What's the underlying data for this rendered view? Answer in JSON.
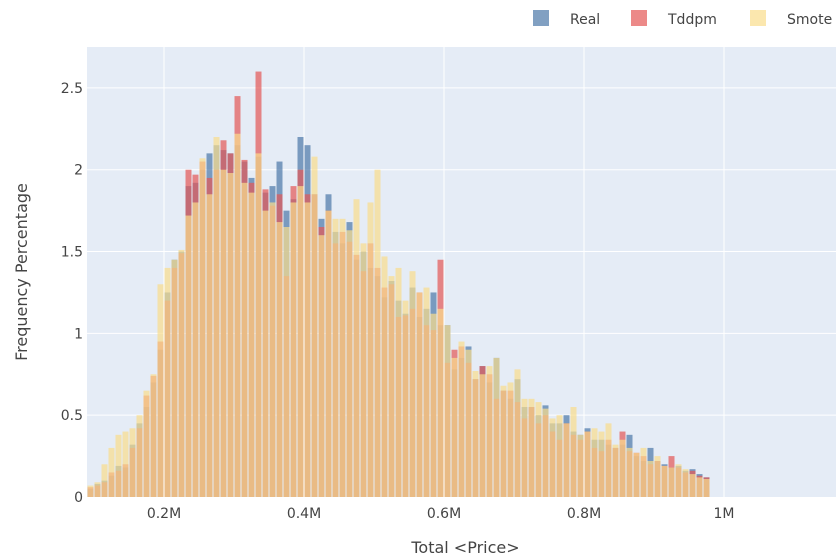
{
  "chart_data": {
    "type": "bar",
    "barmode": "overlay",
    "title": "",
    "xlabel": "Total <Price>",
    "ylabel": "Frequency Percentage",
    "xlim": [
      90000,
      1160000
    ],
    "ylim": [
      0,
      2.75
    ],
    "bin_start": 80000,
    "bin_width": 10000,
    "grid": true,
    "legend_position": "top-right",
    "x_ticks": [
      {
        "value": 200000,
        "label": "0.2M"
      },
      {
        "value": 400000,
        "label": "0.4M"
      },
      {
        "value": 600000,
        "label": "0.6M"
      },
      {
        "value": 800000,
        "label": "0.8M"
      },
      {
        "value": 1000000,
        "label": "1M"
      }
    ],
    "y_ticks": [
      {
        "value": 0,
        "label": "0"
      },
      {
        "value": 0.5,
        "label": "0.5"
      },
      {
        "value": 1,
        "label": "1"
      },
      {
        "value": 1.5,
        "label": "1.5"
      },
      {
        "value": 2,
        "label": "2"
      },
      {
        "value": 2.5,
        "label": "2.5"
      }
    ],
    "colors": {
      "plot_bg": "#e5ecf6",
      "grid": "#ffffff"
    },
    "series": [
      {
        "name": "Real",
        "color": "#4c78a8",
        "values": [
          0.02,
          0.05,
          0.08,
          0.1,
          0.13,
          0.19,
          0.18,
          0.32,
          0.45,
          0.55,
          0.7,
          0.9,
          1.25,
          1.45,
          1.5,
          1.9,
          1.92,
          2.0,
          2.1,
          2.15,
          2.12,
          2.1,
          2.15,
          2.05,
          1.95,
          2.08,
          1.86,
          1.9,
          2.05,
          1.75,
          1.82,
          2.2,
          2.15,
          1.85,
          1.7,
          1.85,
          1.62,
          1.55,
          1.68,
          1.45,
          1.5,
          1.4,
          1.35,
          1.22,
          1.32,
          1.2,
          1.12,
          1.28,
          1.1,
          1.15,
          1.25,
          1.05,
          1.05,
          0.78,
          0.85,
          0.92,
          0.72,
          0.8,
          0.7,
          0.85,
          0.65,
          0.6,
          0.72,
          0.55,
          0.55,
          0.5,
          0.56,
          0.45,
          0.45,
          0.5,
          0.4,
          0.38,
          0.42,
          0.35,
          0.35,
          0.32,
          0.3,
          0.32,
          0.38,
          0.25,
          0.22,
          0.3,
          0.22,
          0.2,
          0.18,
          0.19,
          0.16,
          0.17,
          0.14,
          0.12
        ]
      },
      {
        "name": "Tddpm",
        "color": "#e45756",
        "values": [
          0.03,
          0.06,
          0.07,
          0.09,
          0.15,
          0.16,
          0.2,
          0.3,
          0.42,
          0.62,
          0.74,
          0.95,
          1.2,
          1.4,
          1.49,
          2.0,
          1.97,
          2.05,
          1.95,
          2.0,
          2.18,
          2.1,
          2.45,
          2.06,
          1.92,
          2.6,
          1.88,
          1.78,
          1.85,
          1.35,
          1.9,
          2.0,
          1.85,
          1.85,
          1.65,
          1.75,
          1.55,
          1.62,
          1.56,
          1.48,
          1.38,
          1.55,
          1.4,
          1.28,
          1.3,
          1.1,
          1.11,
          1.15,
          1.25,
          1.05,
          1.02,
          1.45,
          0.82,
          0.9,
          0.92,
          0.82,
          0.72,
          0.8,
          0.75,
          0.6,
          0.65,
          0.65,
          0.58,
          0.48,
          0.55,
          0.45,
          0.5,
          0.4,
          0.35,
          0.45,
          0.38,
          0.35,
          0.4,
          0.3,
          0.28,
          0.35,
          0.3,
          0.4,
          0.28,
          0.27,
          0.25,
          0.2,
          0.22,
          0.19,
          0.25,
          0.18,
          0.15,
          0.16,
          0.13,
          0.12
        ]
      },
      {
        "name": "Smote",
        "color": "#fadd8c",
        "values": [
          0.04,
          0.07,
          0.09,
          0.2,
          0.3,
          0.38,
          0.4,
          0.42,
          0.5,
          0.65,
          0.75,
          1.3,
          1.4,
          1.45,
          1.51,
          1.72,
          1.8,
          2.07,
          1.85,
          2.2,
          2.0,
          1.98,
          2.22,
          1.92,
          1.86,
          2.1,
          1.75,
          1.8,
          1.68,
          1.65,
          1.8,
          1.9,
          1.8,
          2.08,
          1.6,
          1.75,
          1.7,
          1.7,
          1.63,
          1.82,
          1.55,
          1.8,
          2.0,
          1.47,
          1.35,
          1.4,
          1.2,
          1.38,
          1.25,
          1.28,
          1.12,
          1.15,
          1.05,
          0.85,
          0.95,
          0.9,
          0.77,
          0.75,
          0.8,
          0.85,
          0.68,
          0.7,
          0.78,
          0.6,
          0.6,
          0.58,
          0.54,
          0.48,
          0.5,
          0.45,
          0.55,
          0.38,
          0.4,
          0.42,
          0.4,
          0.45,
          0.32,
          0.35,
          0.3,
          0.27,
          0.3,
          0.22,
          0.25,
          0.19,
          0.18,
          0.2,
          0.17,
          0.14,
          0.12,
          0.11
        ]
      }
    ]
  }
}
